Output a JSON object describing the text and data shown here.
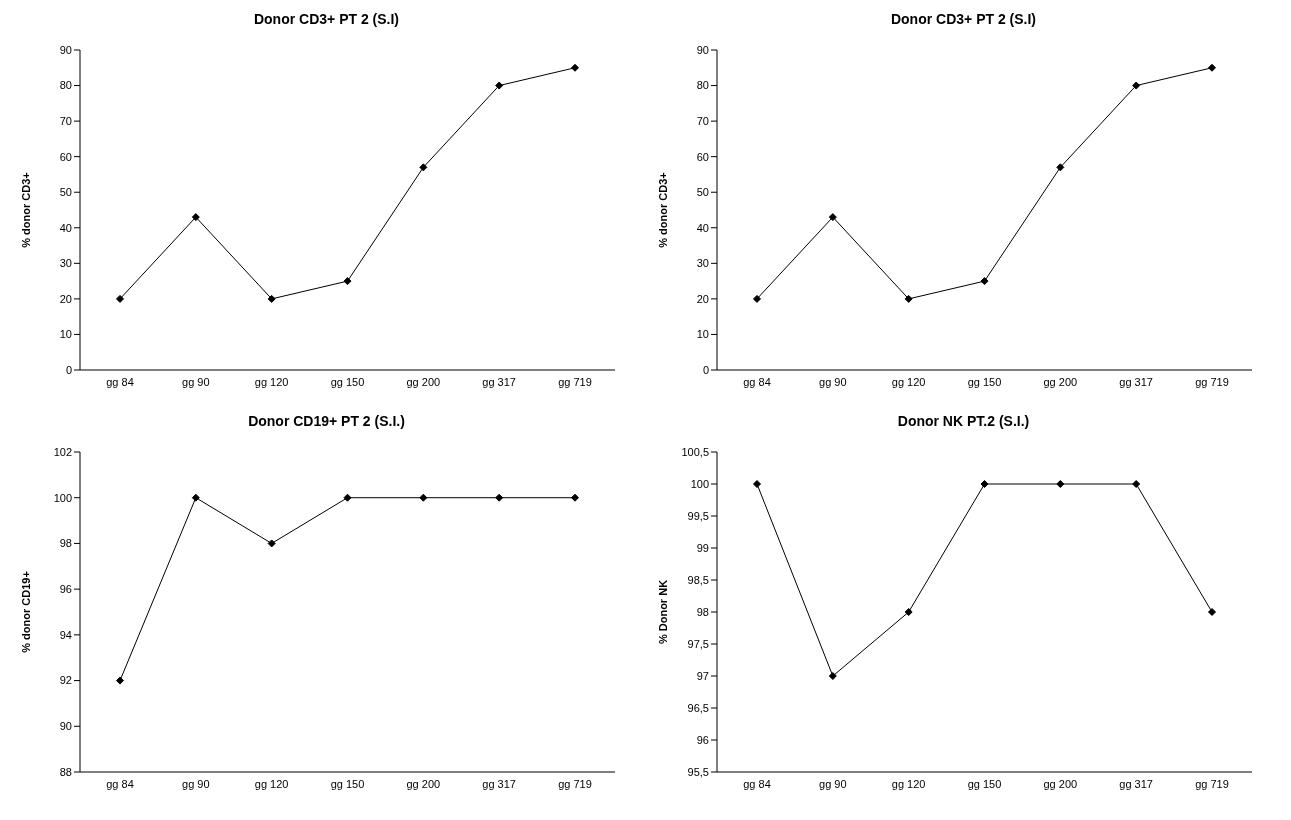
{
  "chart_data": [
    {
      "type": "line",
      "title": "Donor CD3+ PT 2 (S.I)",
      "ylabel": "% donor CD3+",
      "categories": [
        "gg 84",
        "gg 90",
        "gg 120",
        "gg 150",
        "gg 200",
        "gg 317",
        "gg 719"
      ],
      "series": [
        {
          "color": "#000000",
          "values": [
            20,
            43,
            20,
            25,
            57,
            80,
            85
          ]
        }
      ],
      "ylim": [
        0,
        90
      ],
      "yticks": [
        0,
        10,
        20,
        30,
        40,
        50,
        60,
        70,
        80,
        90
      ],
      "marker": "diamond"
    },
    {
      "type": "line",
      "title": "Donor CD3+ PT 2 (S.I)",
      "ylabel": "% donor CD3+",
      "categories": [
        "gg 84",
        "gg 90",
        "gg 120",
        "gg 150",
        "gg 200",
        "gg 317",
        "gg 719"
      ],
      "series": [
        {
          "color": "#000000",
          "values": [
            20,
            43,
            20,
            25,
            57,
            80,
            85
          ]
        }
      ],
      "ylim": [
        0,
        90
      ],
      "yticks": [
        0,
        10,
        20,
        30,
        40,
        50,
        60,
        70,
        80,
        90
      ],
      "marker": "diamond"
    },
    {
      "type": "line",
      "title": "Donor CD19+ PT 2 (S.I.)",
      "ylabel": "% donor CD19+",
      "categories": [
        "gg 84",
        "gg 90",
        "gg 120",
        "gg 150",
        "gg 200",
        "gg 317",
        "gg 719"
      ],
      "series": [
        {
          "color": "#000000",
          "values": [
            92,
            100,
            98,
            100,
            100,
            100,
            100
          ]
        }
      ],
      "ylim": [
        88,
        102
      ],
      "yticks": [
        88,
        90,
        92,
        94,
        96,
        98,
        100,
        102
      ],
      "marker": "diamond"
    },
    {
      "type": "line",
      "title": "Donor NK PT.2 (S.I.)",
      "ylabel": "% Donor NK",
      "categories": [
        "gg 84",
        "gg 90",
        "gg 120",
        "gg 150",
        "gg 200",
        "gg 317",
        "gg 719"
      ],
      "series": [
        {
          "color": "#000000",
          "values": [
            100,
            97,
            98,
            100,
            100,
            100,
            98
          ]
        }
      ],
      "ylim": [
        95.5,
        100.5
      ],
      "yticks": [
        {
          "value": 95.5,
          "label": "95,5"
        },
        96,
        {
          "value": 96.5,
          "label": "96,5"
        },
        97,
        {
          "value": 97.5,
          "label": "97,5"
        },
        98,
        {
          "value": 98.5,
          "label": "98,5"
        },
        99,
        {
          "value": 99.5,
          "label": "99,5"
        },
        100,
        {
          "value": 100.5,
          "label": "100,5"
        }
      ],
      "marker": "diamond"
    }
  ]
}
